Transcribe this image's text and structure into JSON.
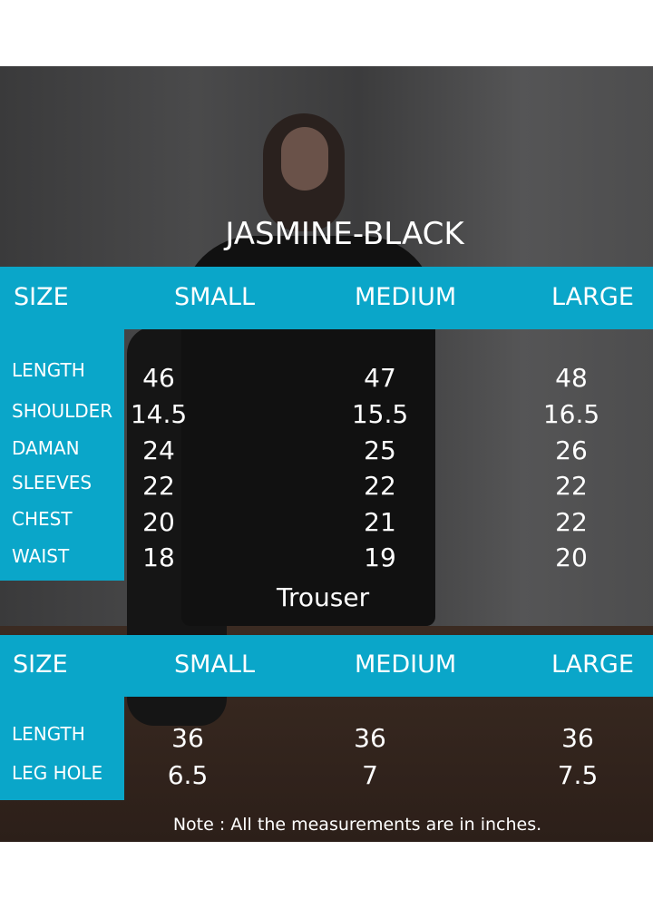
{
  "title": "JASMINE-BLACK",
  "accent_color": "#0aa6c9",
  "shirt": {
    "headers": [
      "SIZE",
      "SMALL",
      "MEDIUM",
      "LARGE"
    ],
    "rows": [
      {
        "label": "LENGTH",
        "values": [
          "46",
          "47",
          "48"
        ]
      },
      {
        "label": "SHOULDER",
        "values": [
          "14.5",
          "15.5",
          "16.5"
        ]
      },
      {
        "label": "DAMAN",
        "values": [
          "24",
          "25",
          "26"
        ]
      },
      {
        "label": "SLEEVES",
        "values": [
          "22",
          "22",
          "22"
        ]
      },
      {
        "label": "CHEST",
        "values": [
          "20",
          "21",
          "22"
        ]
      },
      {
        "label": "WAIST",
        "values": [
          "18",
          "19",
          "20"
        ]
      }
    ]
  },
  "trouser": {
    "title": "Trouser",
    "headers": [
      "SIZE",
      "SMALL",
      "MEDIUM",
      "LARGE"
    ],
    "rows": [
      {
        "label": "LENGTH",
        "values": [
          "36",
          "36",
          "36"
        ]
      },
      {
        "label": "LEG HOLE",
        "values": [
          "6.5",
          "7",
          "7.5"
        ]
      }
    ]
  },
  "note": "Note : All the measurements are in inches."
}
